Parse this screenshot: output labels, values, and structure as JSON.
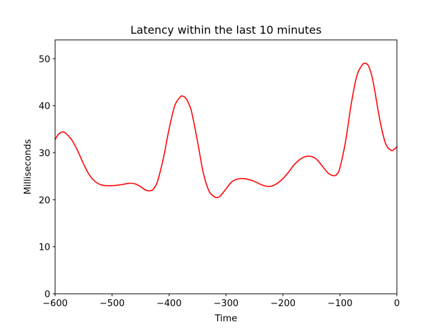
{
  "chart_data": {
    "type": "line",
    "title": "Latency within the last 10 minutes",
    "xlabel": "Time",
    "ylabel": "Milliseconds",
    "xlim": [
      -600,
      0
    ],
    "ylim": [
      0,
      54
    ],
    "xticks": [
      -600,
      -500,
      -400,
      -300,
      -200,
      -100,
      0
    ],
    "yticks": [
      0,
      10,
      20,
      30,
      40,
      50
    ],
    "grid": false,
    "colors": {
      "line": "#ff0000",
      "axes": "#000000",
      "background": "#ffffff"
    },
    "series": [
      {
        "x": [
          -600,
          -595,
          -590,
          -585,
          -580,
          -570,
          -560,
          -550,
          -540,
          -530,
          -520,
          -510,
          -500,
          -490,
          -480,
          -470,
          -460,
          -450,
          -440,
          -430,
          -425,
          -420,
          -410,
          -400,
          -390,
          -380,
          -375,
          -370,
          -365,
          -360,
          -350,
          -340,
          -330,
          -320,
          -315,
          -310,
          -300,
          -290,
          -280,
          -270,
          -260,
          -250,
          -240,
          -230,
          -220,
          -210,
          -200,
          -190,
          -180,
          -170,
          -160,
          -150,
          -140,
          -130,
          -120,
          -110,
          -105,
          -100,
          -90,
          -80,
          -70,
          -60,
          -55,
          -50,
          -45,
          -40,
          -30,
          -20,
          -10,
          -5,
          0
        ],
        "y": [
          32.8,
          33.8,
          34.3,
          34.4,
          34.0,
          32.6,
          30.3,
          27.6,
          25.3,
          23.9,
          23.2,
          23.0,
          23.0,
          23.1,
          23.3,
          23.5,
          23.4,
          22.8,
          22.0,
          22.0,
          22.7,
          24.0,
          28.8,
          35.0,
          40.0,
          41.9,
          42.0,
          41.5,
          40.3,
          38.5,
          32.4,
          25.8,
          21.9,
          20.6,
          20.5,
          20.8,
          22.3,
          23.8,
          24.4,
          24.5,
          24.3,
          23.9,
          23.3,
          22.9,
          22.9,
          23.5,
          24.5,
          25.9,
          27.5,
          28.6,
          29.2,
          29.2,
          28.5,
          27.0,
          25.6,
          25.1,
          25.5,
          26.8,
          32.5,
          40.5,
          46.5,
          48.8,
          49.0,
          48.5,
          46.8,
          44.0,
          37.0,
          32.0,
          30.5,
          30.7,
          31.3
        ]
      }
    ]
  }
}
